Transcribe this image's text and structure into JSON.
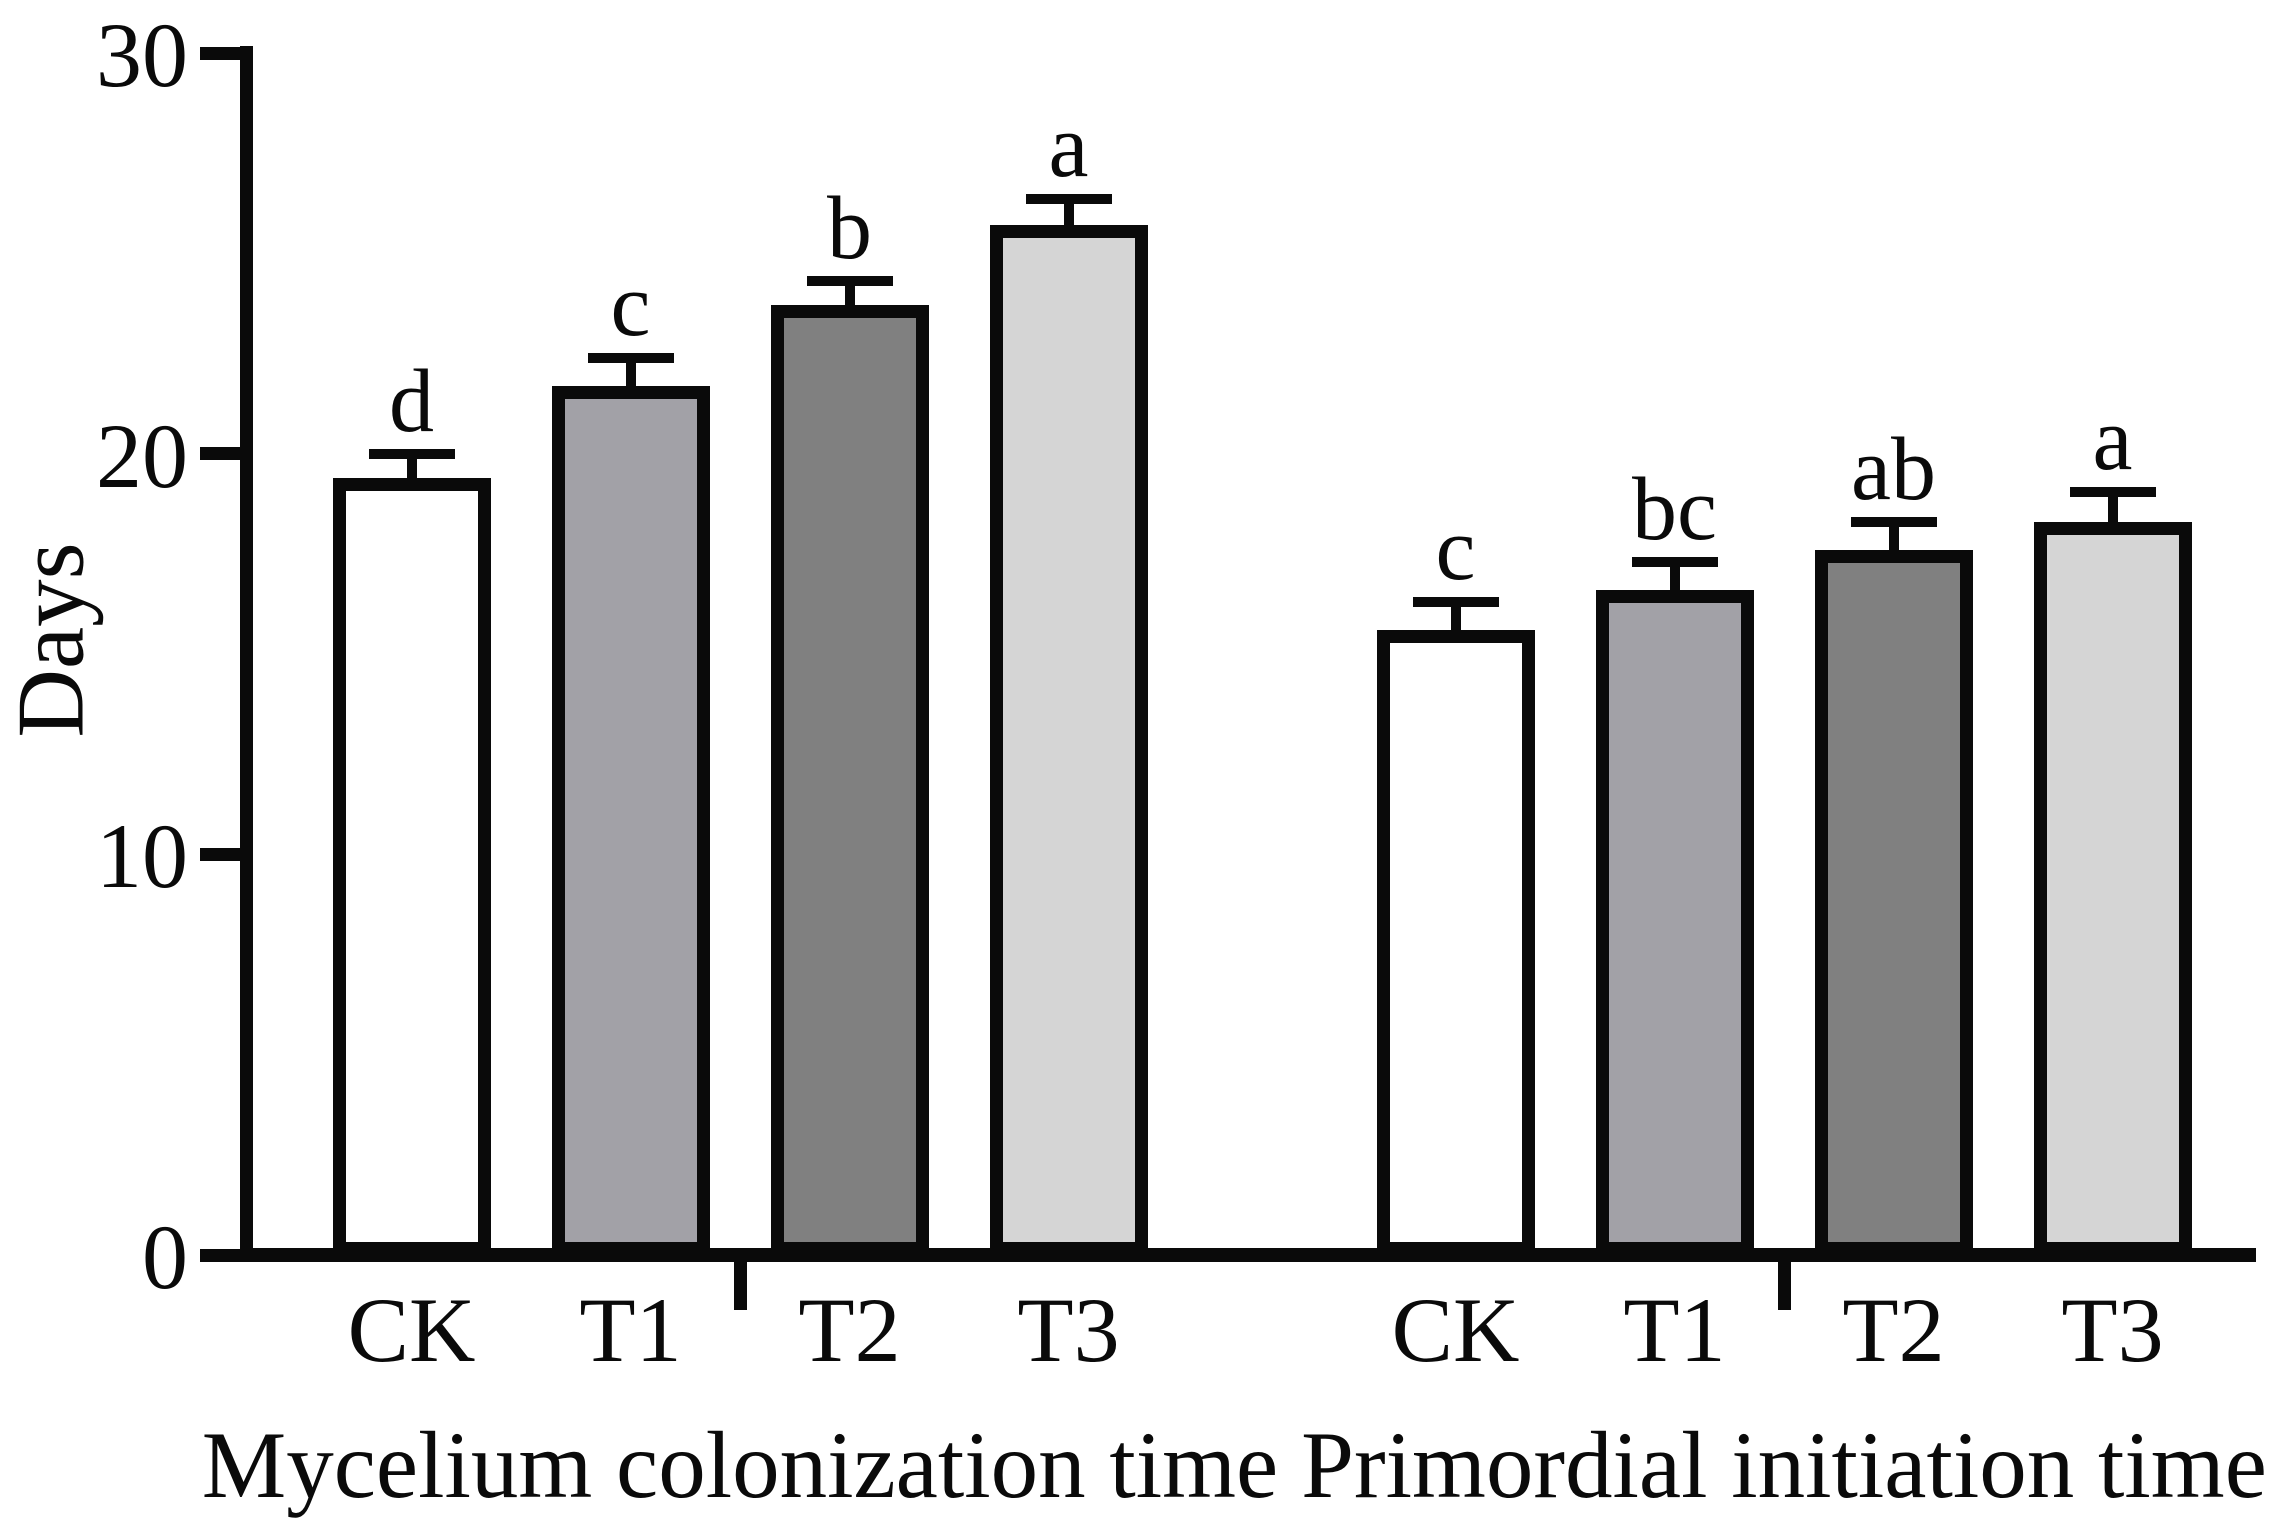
{
  "chart_data": {
    "type": "bar",
    "title": "",
    "ylabel": "Days",
    "xlabel": "",
    "ylim": [
      0,
      30
    ],
    "yticks": [
      0,
      10,
      20,
      30
    ],
    "grid": false,
    "legend": "none",
    "error_bars": "upper-only",
    "categories": [
      "CK",
      "T1",
      "T2",
      "T3"
    ],
    "bar_fill_colors": [
      "#ffffff",
      "#a2a1a7",
      "#808080",
      "#d5d5d5"
    ],
    "bar_border_color": "#0a0a0a",
    "groups": [
      {
        "label": "Mycelium colonization time",
        "values": [
          19.4,
          21.7,
          23.7,
          25.7
        ],
        "errors": [
          0.6,
          0.7,
          0.6,
          0.65
        ],
        "sig_letters": [
          "d",
          "c",
          "b",
          "a"
        ]
      },
      {
        "label": "Primordial initiation time",
        "values": [
          15.6,
          16.6,
          17.6,
          18.3
        ],
        "errors": [
          0.7,
          0.7,
          0.7,
          0.75
        ],
        "sig_letters": [
          "c",
          "bc",
          "ab",
          "a"
        ]
      }
    ]
  }
}
